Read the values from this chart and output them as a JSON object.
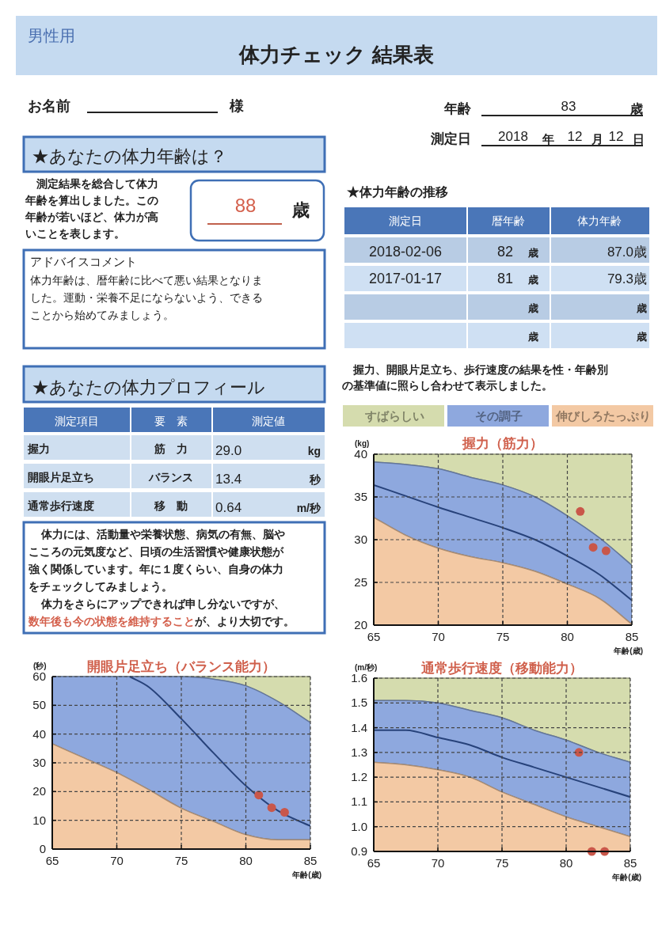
{
  "chart_data": [
    {
      "type": "other",
      "title": "体力チェック 結果表",
      "subtitle": "男性用",
      "annotations": [
        "お名前",
        "様",
        "年齢",
        "83",
        "歳",
        "測定日",
        "2018",
        "年",
        "12",
        "月",
        "12",
        "日",
        "★あなたの体力年齢は？",
        "測定結果を総合して体力",
        "年齢を算出しました。この",
        "年齢が若いほど、体力が高",
        "いことを表します。",
        "88",
        "歳",
        "アドバイスコメント",
        "体力年齢は、暦年齢に比べて悪い結果となりま",
        "した。運動・栄養不足にならないよう、できる",
        "ことから始めてみましょう。",
        "★体力年齢の推移",
        "測定日",
        "暦年齢",
        "体力年齢",
        "2018-02-06",
        "82",
        "歳",
        "87.0歳",
        "2017-01-17",
        "81",
        "歳",
        "79.3歳",
        "歳",
        "歳",
        "歳",
        "歳",
        "★あなたの体力プロフィール",
        "測定項目",
        "要　素",
        "測定値",
        "握力",
        "筋　力",
        "29.0",
        "kg",
        "開眼片足立ち",
        "バランス",
        "13.4",
        "秒",
        "通常歩行速度",
        "移　動",
        "0.64",
        "m/秒",
        "体力には、活動量や栄養状態、病気の有無、脳や",
        "こころの元気度など、日頃の生活習慣や健康状態が",
        "強く関係しています。年に１度くらい、自身の体力",
        "をチェックしてみましょう。",
        "体力をさらにアップできれば申し分ないですが、",
        "数年後も今の状態を維持すること",
        "が、より大切です。",
        "握力、開眼片足立ち、歩行速度の結果を性・年齢別",
        "の基準値に照らし合わせて表示しました。"
      ]
    },
    {
      "type": "area",
      "title": "握力（筋力）",
      "ylabel": "(kg)",
      "xlabel": "年齢(歳)",
      "xlim": [
        65,
        85
      ],
      "ylim": [
        20,
        40
      ],
      "xticks": [
        65,
        70,
        75,
        80,
        85
      ],
      "yticks": [
        20,
        25,
        30,
        35,
        40
      ],
      "grid": true,
      "legend": "top",
      "x": [
        65,
        67.5,
        70,
        72.5,
        75,
        77.5,
        80,
        82.5,
        85
      ],
      "series": [
        {
          "name": "すばらしい",
          "color": "#d5dcae",
          "values": [
            40,
            40,
            40,
            40,
            40,
            40,
            40,
            40,
            40
          ]
        },
        {
          "name": "その調子",
          "color": "#8ea8de",
          "values": [
            39.1,
            38.8,
            38.3,
            37.3,
            36.4,
            35.0,
            32.8,
            30.2,
            27.0
          ]
        },
        {
          "name": "伸びしろたっぷり",
          "color": "#f3c9a4",
          "values": [
            32.6,
            30.5,
            29.0,
            28.0,
            27.3,
            26.3,
            24.8,
            23.1,
            20.1
          ]
        },
        {
          "type": "line",
          "color": "#27427a",
          "values": [
            36.4,
            35.1,
            33.8,
            32.6,
            31.4,
            30.0,
            28.1,
            25.9,
            22.9
          ]
        },
        {
          "type": "scatter",
          "marker": "circle",
          "color": "#c9574a",
          "x": [
            81,
            82,
            83
          ],
          "values": [
            33.3,
            29.1,
            28.7
          ]
        }
      ]
    },
    {
      "type": "area",
      "title": "開眼片足立ち（バランス能力）",
      "ylabel": "(秒)",
      "xlabel": "年齢(歳)",
      "xlim": [
        65,
        85
      ],
      "ylim": [
        0,
        60
      ],
      "xticks": [
        65,
        70,
        75,
        80,
        85
      ],
      "yticks": [
        0,
        10,
        20,
        30,
        40,
        50,
        60
      ],
      "grid": true,
      "x": [
        65,
        67.5,
        70,
        72.5,
        75,
        77.5,
        80,
        82.5,
        85
      ],
      "series": [
        {
          "color": "#d5dcae",
          "values": [
            60,
            60,
            60,
            60,
            60,
            60,
            60,
            60,
            60
          ]
        },
        {
          "color": "#8ea8de",
          "values": [
            60,
            60,
            60,
            60,
            60,
            59.1,
            56.8,
            51.3,
            44.0
          ]
        },
        {
          "color": "#f3c9a4",
          "values": [
            36.6,
            31.6,
            26.6,
            20.6,
            14.2,
            9.6,
            5.0,
            3.2,
            3.2
          ]
        },
        {
          "type": "line",
          "color": "#27427a",
          "x": [
            71,
            72.5,
            75,
            77.5,
            80,
            82.5,
            85
          ],
          "values": [
            60,
            56.3,
            45.3,
            33.4,
            22.0,
            13.3,
            8.0
          ]
        },
        {
          "type": "scatter",
          "marker": "circle",
          "color": "#c9574a",
          "x": [
            81,
            82,
            83
          ],
          "values": [
            18.8,
            14.4,
            12.8
          ]
        }
      ]
    },
    {
      "type": "area",
      "title": "通常歩行速度（移動能力）",
      "ylabel": "(m/秒)",
      "xlabel": "年齢(歳)",
      "xlim": [
        65,
        85
      ],
      "ylim": [
        0.9,
        1.6
      ],
      "xticks": [
        65,
        70,
        75,
        80,
        85
      ],
      "yticks": [
        {
          "value": 0.9,
          "label": "0.9"
        },
        {
          "value": 1.0,
          "label": "1.0"
        },
        1.1,
        1.2,
        1.3,
        1.4,
        1.5,
        1.6
      ],
      "grid": true,
      "x": [
        65,
        67.5,
        70,
        72.5,
        75,
        77.5,
        80,
        82.5,
        85
      ],
      "series": [
        {
          "color": "#d5dcae",
          "values": [
            1.6,
            1.6,
            1.6,
            1.6,
            1.6,
            1.6,
            1.6,
            1.6,
            1.6
          ]
        },
        {
          "color": "#8ea8de",
          "values": [
            1.51,
            1.51,
            1.5,
            1.47,
            1.44,
            1.39,
            1.35,
            1.3,
            1.26
          ]
        },
        {
          "color": "#f3c9a4",
          "values": [
            1.26,
            1.25,
            1.23,
            1.2,
            1.14,
            1.09,
            1.04,
            1.0,
            0.96
          ]
        },
        {
          "type": "line",
          "color": "#27427a",
          "values": [
            1.39,
            1.39,
            1.36,
            1.33,
            1.28,
            1.24,
            1.2,
            1.16,
            1.12
          ]
        },
        {
          "type": "scatter",
          "marker": "circle",
          "color": "#c9574a",
          "x": [
            81,
            82,
            83
          ],
          "values": [
            1.3,
            0.9,
            0.9
          ]
        }
      ]
    }
  ]
}
